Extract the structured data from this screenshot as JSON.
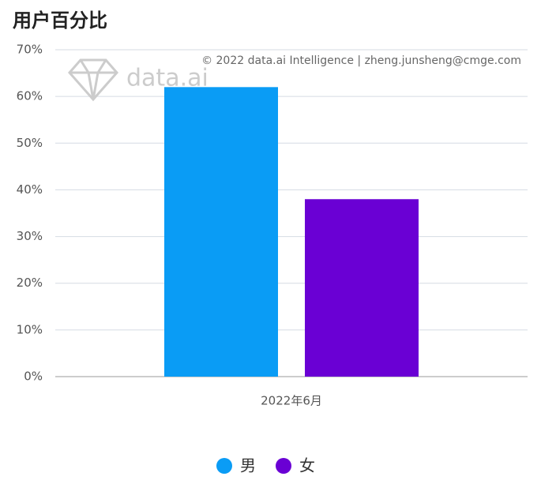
{
  "chart_data": {
    "type": "bar",
    "title": "用户百分比",
    "watermark": "© 2022 data.ai Intelligence | zheng.junsheng@cmge.com",
    "logo_text": "data.ai",
    "categories": [
      "2022年6月"
    ],
    "series": [
      {
        "name": "男",
        "color": "#0a9cf5",
        "values": [
          62
        ]
      },
      {
        "name": "女",
        "color": "#6a00d4",
        "values": [
          38
        ]
      }
    ],
    "ylim": [
      0,
      70
    ],
    "yticks": [
      {
        "value": 0,
        "label": "0%"
      },
      {
        "value": 10,
        "label": "10%"
      },
      {
        "value": 20,
        "label": "20%"
      },
      {
        "value": 30,
        "label": "30%"
      },
      {
        "value": 40,
        "label": "40%"
      },
      {
        "value": 50,
        "label": "50%"
      },
      {
        "value": 60,
        "label": "60%"
      },
      {
        "value": 70,
        "label": "70%"
      }
    ],
    "grid": true,
    "legend": "bottom"
  }
}
